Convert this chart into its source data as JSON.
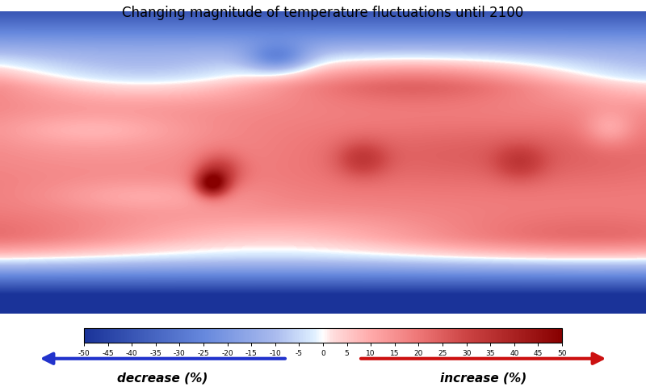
{
  "title": "Changing magnitude of temperature fluctuations until 2100",
  "title_fontsize": 12,
  "colorbar_ticks": [
    -50,
    -45,
    -40,
    -35,
    -30,
    -25,
    -20,
    -15,
    -10,
    -5,
    0,
    5,
    10,
    15,
    20,
    25,
    30,
    35,
    40,
    45,
    50
  ],
  "colorbar_label_left": "decrease (%)",
  "colorbar_label_right": "increase (%)",
  "vmin": -50,
  "vmax": 50,
  "arrow_left_color": "#2233cc",
  "arrow_right_color": "#cc1111",
  "background_color": "#ffffff",
  "figsize": [
    8.0,
    4.8
  ],
  "dpi": 100
}
